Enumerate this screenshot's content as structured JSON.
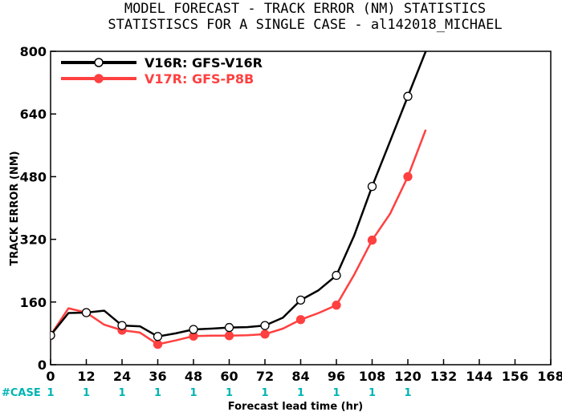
{
  "chart_data": {
    "type": "line",
    "title": [
      "MODEL FORECAST - TRACK ERROR (NM) STATISTICS",
      "STATISTISCS FOR A SINGLE CASE - al142018_MICHAEL"
    ],
    "xlabel": "Forecast lead time (hr)",
    "ylabel": "TRACK ERROR (NM)",
    "xlim": [
      0,
      168
    ],
    "ylim": [
      0,
      800
    ],
    "xticks": [
      0,
      12,
      24,
      36,
      48,
      60,
      72,
      84,
      96,
      108,
      120,
      132,
      144,
      156,
      168
    ],
    "yticks": [
      0,
      160,
      320,
      480,
      640,
      800
    ],
    "grid": false,
    "legend_position": "top-left",
    "case_label": "#CASE",
    "case_counts": [
      {
        "x": 0,
        "n": "1"
      },
      {
        "x": 12,
        "n": "1"
      },
      {
        "x": 24,
        "n": "1"
      },
      {
        "x": 36,
        "n": "1"
      },
      {
        "x": 48,
        "n": "1"
      },
      {
        "x": 60,
        "n": "1"
      },
      {
        "x": 72,
        "n": "1"
      },
      {
        "x": 84,
        "n": "1"
      },
      {
        "x": 96,
        "n": "1"
      },
      {
        "x": 108,
        "n": "1"
      },
      {
        "x": 120,
        "n": "1"
      }
    ],
    "series": [
      {
        "name": "V16R: GFS-V16R",
        "color": "#000000",
        "marker": "open-circle",
        "line": [
          [
            0,
            75
          ],
          [
            6,
            132
          ],
          [
            12,
            133
          ],
          [
            18,
            138
          ],
          [
            24,
            100
          ],
          [
            30,
            98
          ],
          [
            36,
            72
          ],
          [
            42,
            80
          ],
          [
            48,
            90
          ],
          [
            54,
            92
          ],
          [
            60,
            95
          ],
          [
            66,
            96
          ],
          [
            72,
            100
          ],
          [
            78,
            120
          ],
          [
            84,
            165
          ],
          [
            90,
            190
          ],
          [
            96,
            228
          ],
          [
            102,
            330
          ],
          [
            108,
            455
          ],
          [
            114,
            570
          ],
          [
            120,
            685
          ],
          [
            126,
            800
          ]
        ],
        "points": [
          [
            0,
            75
          ],
          [
            12,
            133
          ],
          [
            24,
            100
          ],
          [
            36,
            72
          ],
          [
            48,
            90
          ],
          [
            60,
            95
          ],
          [
            72,
            100
          ],
          [
            84,
            165
          ],
          [
            96,
            228
          ],
          [
            108,
            455
          ],
          [
            120,
            685
          ]
        ]
      },
      {
        "name": "V17R: GFS-P8B",
        "color": "#ff4040",
        "marker": "filled-circle",
        "line": [
          [
            0,
            75
          ],
          [
            6,
            144
          ],
          [
            12,
            133
          ],
          [
            18,
            102
          ],
          [
            24,
            88
          ],
          [
            30,
            82
          ],
          [
            36,
            52
          ],
          [
            42,
            62
          ],
          [
            48,
            73
          ],
          [
            54,
            74
          ],
          [
            60,
            74
          ],
          [
            66,
            75
          ],
          [
            72,
            78
          ],
          [
            78,
            92
          ],
          [
            84,
            115
          ],
          [
            90,
            132
          ],
          [
            96,
            152
          ],
          [
            102,
            230
          ],
          [
            108,
            318
          ],
          [
            114,
            385
          ],
          [
            120,
            480
          ],
          [
            126,
            600
          ]
        ],
        "points": [
          [
            0,
            75
          ],
          [
            12,
            133
          ],
          [
            24,
            88
          ],
          [
            36,
            52
          ],
          [
            48,
            73
          ],
          [
            60,
            74
          ],
          [
            72,
            78
          ],
          [
            84,
            115
          ],
          [
            96,
            152
          ],
          [
            108,
            318
          ],
          [
            120,
            480
          ]
        ]
      }
    ]
  },
  "colors": {
    "axis": "#000000",
    "case_label": "#00b4b4"
  }
}
